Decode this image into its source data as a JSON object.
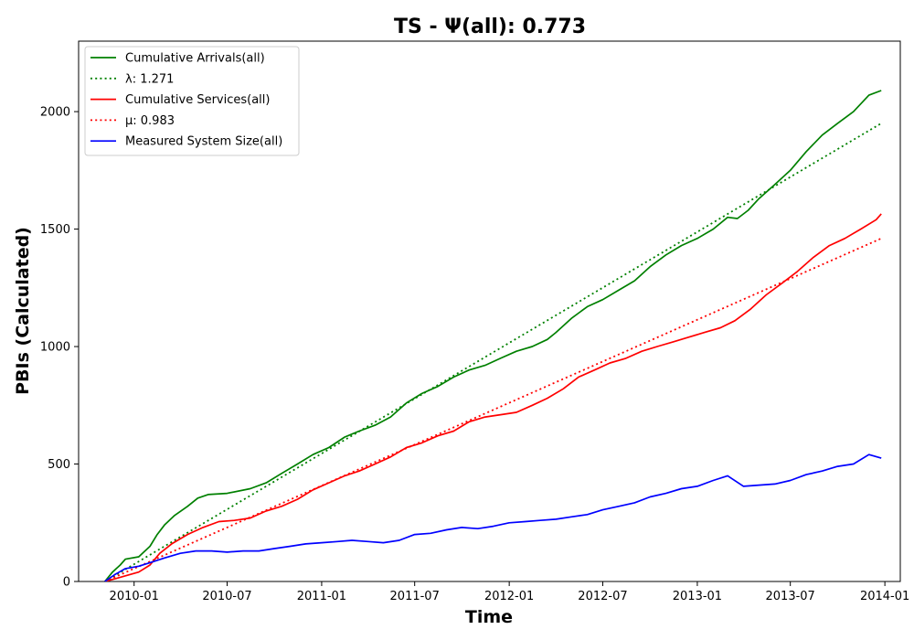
{
  "chart_data": {
    "type": "line",
    "title": "TS -  Ψ(all): 0.773",
    "xlabel": "Time",
    "ylabel": "PBIs (Calculated)",
    "xlim": [
      "2009-09-15",
      "2014-01-31"
    ],
    "ylim": [
      0,
      2300
    ],
    "x_ticks": [
      "2010-01",
      "2010-07",
      "2011-01",
      "2011-07",
      "2012-01",
      "2012-07",
      "2013-01",
      "2013-07",
      "2014-01"
    ],
    "y_ticks": [
      0,
      500,
      1000,
      1500,
      2000
    ],
    "grid": false,
    "legend_position": "upper-left",
    "series": [
      {
        "name": "Cumulative Arrivals(all)",
        "color": "#008000",
        "style": "solid",
        "points": [
          [
            "2009-11-05",
            0
          ],
          [
            "2009-11-20",
            40
          ],
          [
            "2009-12-05",
            70
          ],
          [
            "2009-12-15",
            95
          ],
          [
            "2010-01-10",
            105
          ],
          [
            "2010-02-01",
            150
          ],
          [
            "2010-02-15",
            200
          ],
          [
            "2010-03-01",
            240
          ],
          [
            "2010-03-20",
            280
          ],
          [
            "2010-04-15",
            320
          ],
          [
            "2010-05-05",
            355
          ],
          [
            "2010-05-25",
            370
          ],
          [
            "2010-07-01",
            375
          ],
          [
            "2010-08-15",
            395
          ],
          [
            "2010-09-15",
            420
          ],
          [
            "2010-10-15",
            460
          ],
          [
            "2010-11-15",
            500
          ],
          [
            "2010-12-15",
            540
          ],
          [
            "2011-01-15",
            570
          ],
          [
            "2011-02-15",
            615
          ],
          [
            "2011-03-15",
            640
          ],
          [
            "2011-04-15",
            665
          ],
          [
            "2011-05-15",
            700
          ],
          [
            "2011-06-15",
            760
          ],
          [
            "2011-07-15",
            800
          ],
          [
            "2011-08-15",
            830
          ],
          [
            "2011-09-15",
            870
          ],
          [
            "2011-10-15",
            900
          ],
          [
            "2011-11-15",
            920
          ],
          [
            "2011-12-15",
            950
          ],
          [
            "2012-01-15",
            980
          ],
          [
            "2012-02-15",
            1000
          ],
          [
            "2012-03-15",
            1030
          ],
          [
            "2012-04-01",
            1060
          ],
          [
            "2012-05-01",
            1120
          ],
          [
            "2012-06-01",
            1170
          ],
          [
            "2012-07-01",
            1200
          ],
          [
            "2012-08-01",
            1240
          ],
          [
            "2012-09-01",
            1280
          ],
          [
            "2012-10-01",
            1340
          ],
          [
            "2012-11-01",
            1390
          ],
          [
            "2012-12-01",
            1430
          ],
          [
            "2013-01-01",
            1460
          ],
          [
            "2013-02-01",
            1500
          ],
          [
            "2013-03-01",
            1550
          ],
          [
            "2013-03-20",
            1545
          ],
          [
            "2013-04-10",
            1580
          ],
          [
            "2013-05-01",
            1630
          ],
          [
            "2013-06-01",
            1690
          ],
          [
            "2013-07-01",
            1750
          ],
          [
            "2013-08-01",
            1830
          ],
          [
            "2013-09-01",
            1900
          ],
          [
            "2013-10-01",
            1950
          ],
          [
            "2013-11-01",
            2000
          ],
          [
            "2013-12-01",
            2070
          ],
          [
            "2013-12-25",
            2090
          ]
        ]
      },
      {
        "name": "λ: 1.271",
        "color": "#008000",
        "style": "dotted",
        "points": [
          [
            "2009-11-05",
            0
          ],
          [
            "2013-12-25",
            1950
          ]
        ]
      },
      {
        "name": "Cumulative Services(all)",
        "color": "#ff0000",
        "style": "solid",
        "points": [
          [
            "2009-11-05",
            0
          ],
          [
            "2009-12-01",
            15
          ],
          [
            "2010-01-10",
            40
          ],
          [
            "2010-02-01",
            70
          ],
          [
            "2010-02-20",
            120
          ],
          [
            "2010-03-15",
            160
          ],
          [
            "2010-04-15",
            200
          ],
          [
            "2010-05-15",
            230
          ],
          [
            "2010-06-15",
            255
          ],
          [
            "2010-07-15",
            260
          ],
          [
            "2010-08-15",
            270
          ],
          [
            "2010-09-15",
            300
          ],
          [
            "2010-10-15",
            320
          ],
          [
            "2010-11-15",
            350
          ],
          [
            "2010-12-15",
            390
          ],
          [
            "2011-01-15",
            420
          ],
          [
            "2011-02-15",
            450
          ],
          [
            "2011-03-15",
            470
          ],
          [
            "2011-04-15",
            500
          ],
          [
            "2011-05-15",
            530
          ],
          [
            "2011-06-15",
            570
          ],
          [
            "2011-07-15",
            590
          ],
          [
            "2011-08-15",
            620
          ],
          [
            "2011-09-15",
            640
          ],
          [
            "2011-10-15",
            680
          ],
          [
            "2011-11-15",
            700
          ],
          [
            "2011-12-15",
            710
          ],
          [
            "2012-01-15",
            720
          ],
          [
            "2012-02-15",
            750
          ],
          [
            "2012-03-15",
            780
          ],
          [
            "2012-04-15",
            820
          ],
          [
            "2012-05-15",
            870
          ],
          [
            "2012-06-15",
            900
          ],
          [
            "2012-07-15",
            930
          ],
          [
            "2012-08-15",
            950
          ],
          [
            "2012-09-15",
            980
          ],
          [
            "2012-10-15",
            1000
          ],
          [
            "2012-11-15",
            1020
          ],
          [
            "2012-12-15",
            1040
          ],
          [
            "2013-01-15",
            1060
          ],
          [
            "2013-02-15",
            1080
          ],
          [
            "2013-03-15",
            1110
          ],
          [
            "2013-04-15",
            1160
          ],
          [
            "2013-05-15",
            1220
          ],
          [
            "2013-06-15",
            1270
          ],
          [
            "2013-07-15",
            1320
          ],
          [
            "2013-08-15",
            1380
          ],
          [
            "2013-09-15",
            1430
          ],
          [
            "2013-10-15",
            1460
          ],
          [
            "2013-11-15",
            1500
          ],
          [
            "2013-12-15",
            1540
          ],
          [
            "2013-12-25",
            1565
          ]
        ]
      },
      {
        "name": "μ: 0.983",
        "color": "#ff0000",
        "style": "dotted",
        "points": [
          [
            "2009-11-05",
            0
          ],
          [
            "2013-12-25",
            1460
          ]
        ]
      },
      {
        "name": "Measured System Size(all)",
        "color": "#0000ff",
        "style": "solid",
        "points": [
          [
            "2009-11-05",
            0
          ],
          [
            "2009-11-25",
            30
          ],
          [
            "2009-12-15",
            55
          ],
          [
            "2010-01-10",
            65
          ],
          [
            "2010-02-01",
            80
          ],
          [
            "2010-03-01",
            100
          ],
          [
            "2010-04-01",
            120
          ],
          [
            "2010-05-01",
            130
          ],
          [
            "2010-06-01",
            130
          ],
          [
            "2010-07-01",
            125
          ],
          [
            "2010-08-01",
            130
          ],
          [
            "2010-09-01",
            130
          ],
          [
            "2010-10-01",
            140
          ],
          [
            "2010-11-01",
            150
          ],
          [
            "2010-12-01",
            160
          ],
          [
            "2011-01-01",
            165
          ],
          [
            "2011-02-01",
            170
          ],
          [
            "2011-03-01",
            175
          ],
          [
            "2011-04-01",
            170
          ],
          [
            "2011-05-01",
            165
          ],
          [
            "2011-06-01",
            175
          ],
          [
            "2011-07-01",
            200
          ],
          [
            "2011-08-01",
            205
          ],
          [
            "2011-09-01",
            220
          ],
          [
            "2011-10-01",
            230
          ],
          [
            "2011-11-01",
            225
          ],
          [
            "2011-12-01",
            235
          ],
          [
            "2012-01-01",
            250
          ],
          [
            "2012-02-01",
            255
          ],
          [
            "2012-03-01",
            260
          ],
          [
            "2012-04-01",
            265
          ],
          [
            "2012-05-01",
            275
          ],
          [
            "2012-06-01",
            285
          ],
          [
            "2012-07-01",
            305
          ],
          [
            "2012-08-01",
            320
          ],
          [
            "2012-09-01",
            335
          ],
          [
            "2012-10-01",
            360
          ],
          [
            "2012-11-01",
            375
          ],
          [
            "2012-12-01",
            395
          ],
          [
            "2013-01-01",
            405
          ],
          [
            "2013-02-01",
            430
          ],
          [
            "2013-03-01",
            450
          ],
          [
            "2013-04-01",
            405
          ],
          [
            "2013-05-01",
            410
          ],
          [
            "2013-06-01",
            415
          ],
          [
            "2013-07-01",
            430
          ],
          [
            "2013-08-01",
            455
          ],
          [
            "2013-09-01",
            470
          ],
          [
            "2013-10-01",
            490
          ],
          [
            "2013-11-01",
            500
          ],
          [
            "2013-12-01",
            540
          ],
          [
            "2013-12-25",
            525
          ]
        ]
      }
    ]
  }
}
